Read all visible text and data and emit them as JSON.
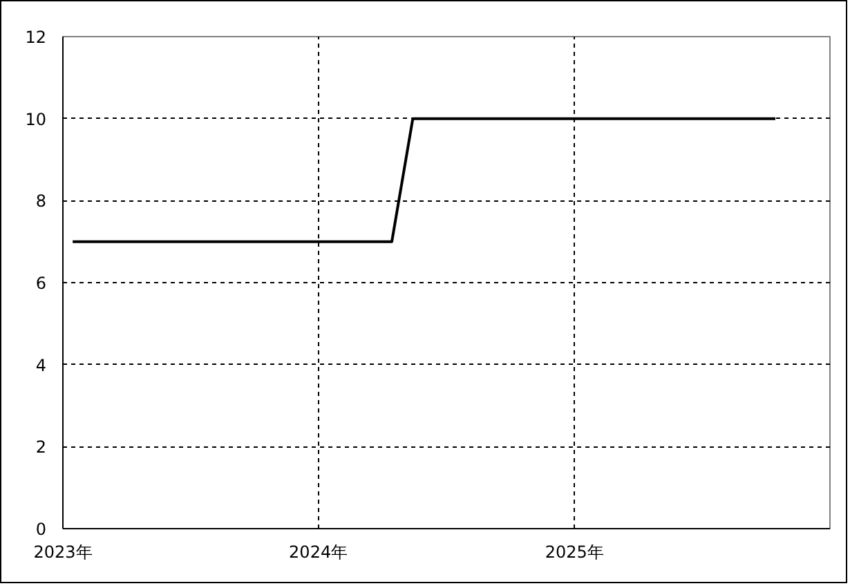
{
  "chart_data": {
    "type": "line",
    "x": [
      "2023-01-15",
      "2024-04-15",
      "2024-05-15",
      "2025-10-15"
    ],
    "series": [
      {
        "color": "#000000",
        "values": [
          7,
          7,
          10,
          10
        ]
      }
    ],
    "xlim": [
      "2023-01-01",
      "2026-01-01"
    ],
    "xticks": [
      {
        "value": "2023-01-01",
        "label": "2023年"
      },
      {
        "value": "2024-01-01",
        "label": "2024年"
      },
      {
        "value": "2025-01-01",
        "label": "2025年"
      }
    ],
    "ylim": [
      0,
      12
    ],
    "yticks": [
      0,
      2,
      4,
      6,
      8,
      10,
      12
    ],
    "grid": true
  }
}
